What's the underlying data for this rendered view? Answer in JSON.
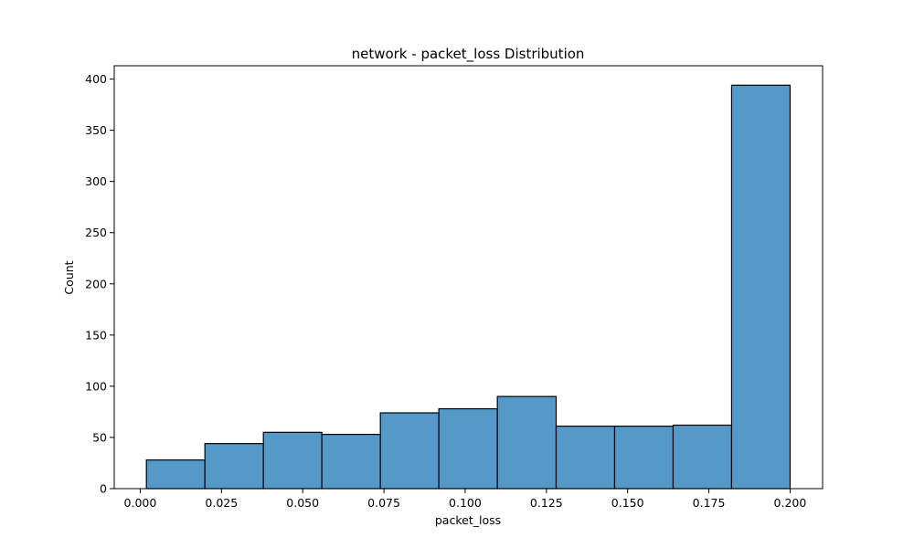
{
  "chart_data": {
    "type": "bar",
    "title": "network - packet_loss Distribution",
    "xlabel": "packet_loss",
    "ylabel": "Count",
    "xlim": [
      -0.008,
      0.21
    ],
    "ylim": [
      0,
      413
    ],
    "x_ticks": [
      0.0,
      0.025,
      0.05,
      0.075,
      0.1,
      0.125,
      0.15,
      0.175,
      0.2
    ],
    "x_tick_labels": [
      "0.000",
      "0.025",
      "0.050",
      "0.075",
      "0.100",
      "0.125",
      "0.150",
      "0.175",
      "0.200"
    ],
    "y_ticks": [
      0,
      50,
      100,
      150,
      200,
      250,
      300,
      350,
      400
    ],
    "y_tick_labels": [
      "0",
      "50",
      "100",
      "150",
      "200",
      "250",
      "300",
      "350",
      "400"
    ],
    "bins": [
      {
        "x0": 0.0019,
        "x1": 0.0199,
        "count": 28
      },
      {
        "x0": 0.0199,
        "x1": 0.0379,
        "count": 44
      },
      {
        "x0": 0.0379,
        "x1": 0.0559,
        "count": 55
      },
      {
        "x0": 0.0559,
        "x1": 0.0739,
        "count": 53
      },
      {
        "x0": 0.0739,
        "x1": 0.0919,
        "count": 74
      },
      {
        "x0": 0.0919,
        "x1": 0.1099,
        "count": 78
      },
      {
        "x0": 0.1099,
        "x1": 0.128,
        "count": 90
      },
      {
        "x0": 0.128,
        "x1": 0.146,
        "count": 61
      },
      {
        "x0": 0.146,
        "x1": 0.164,
        "count": 61
      },
      {
        "x0": 0.164,
        "x1": 0.182,
        "count": 62
      },
      {
        "x0": 0.182,
        "x1": 0.2,
        "count": 394
      }
    ],
    "bar_color": "#5599c8",
    "edge_color": "#000000",
    "grid": false
  }
}
